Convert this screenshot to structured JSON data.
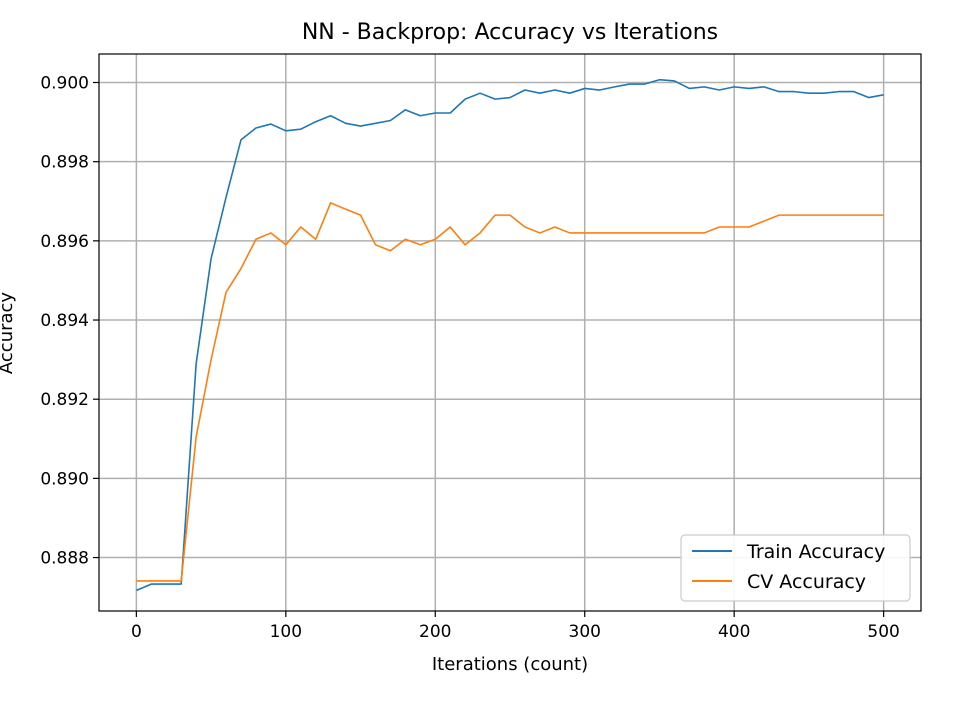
{
  "chart_data": {
    "type": "line",
    "title": "NN - Backprop: Accuracy vs Iterations",
    "xlabel": "Iterations (count)",
    "ylabel": "Accuracy",
    "xlim": [
      -25,
      525
    ],
    "ylim": [
      0.88665,
      0.90072
    ],
    "xticks": [
      0,
      100,
      200,
      300,
      400,
      500
    ],
    "yticks": [
      0.888,
      0.89,
      0.892,
      0.894,
      0.896,
      0.898,
      0.9
    ],
    "ytick_labels": [
      "0.888",
      "0.890",
      "0.892",
      "0.894",
      "0.896",
      "0.898",
      "0.900"
    ],
    "xtick_labels": [
      "0",
      "100",
      "200",
      "300",
      "400",
      "500"
    ],
    "grid": true,
    "legend_position": "bottom-right",
    "x": [
      0,
      10,
      20,
      30,
      40,
      50,
      60,
      70,
      80,
      90,
      100,
      110,
      120,
      130,
      140,
      150,
      160,
      170,
      180,
      190,
      200,
      210,
      220,
      230,
      240,
      250,
      260,
      270,
      280,
      290,
      300,
      310,
      320,
      330,
      340,
      350,
      360,
      370,
      380,
      390,
      400,
      410,
      420,
      430,
      440,
      450,
      460,
      470,
      480,
      490,
      500
    ],
    "series": [
      {
        "name": "Train Accuracy",
        "color": "#1f77b4",
        "values": [
          0.88717,
          0.88733,
          0.88733,
          0.88733,
          0.8929,
          0.89555,
          0.8971,
          0.89855,
          0.89885,
          0.89895,
          0.89878,
          0.89882,
          0.89901,
          0.89916,
          0.89897,
          0.8989,
          0.89897,
          0.89904,
          0.89931,
          0.89916,
          0.89923,
          0.89923,
          0.89958,
          0.89973,
          0.89958,
          0.89962,
          0.89981,
          0.89973,
          0.89981,
          0.89973,
          0.89985,
          0.89981,
          0.89989,
          0.89996,
          0.89996,
          0.90007,
          0.90004,
          0.89985,
          0.89989,
          0.89981,
          0.89989,
          0.89985,
          0.89989,
          0.89977,
          0.89977,
          0.89973,
          0.89973,
          0.89977,
          0.89977,
          0.89962,
          0.89969
        ]
      },
      {
        "name": "CV Accuracy",
        "color": "#ff7f0e",
        "values": [
          0.88741,
          0.88741,
          0.88741,
          0.88741,
          0.89105,
          0.893,
          0.8947,
          0.8953,
          0.89604,
          0.8962,
          0.8959,
          0.89635,
          0.89604,
          0.89696,
          0.8968,
          0.89665,
          0.8959,
          0.89575,
          0.89604,
          0.8959,
          0.89604,
          0.89635,
          0.8959,
          0.8962,
          0.89665,
          0.89665,
          0.89635,
          0.8962,
          0.89635,
          0.8962,
          0.8962,
          0.8962,
          0.8962,
          0.8962,
          0.8962,
          0.8962,
          0.8962,
          0.8962,
          0.8962,
          0.89635,
          0.89635,
          0.89635,
          0.8965,
          0.89665,
          0.89665,
          0.89665,
          0.89665,
          0.89665,
          0.89665,
          0.89665,
          0.89665
        ]
      }
    ]
  }
}
